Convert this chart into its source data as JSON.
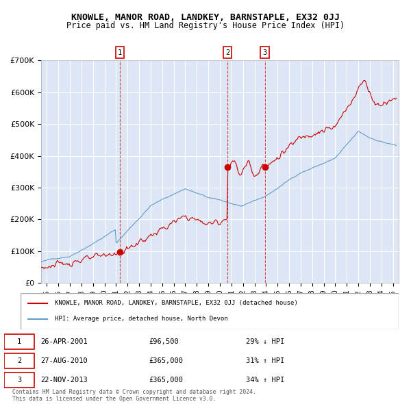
{
  "title": "KNOWLE, MANOR ROAD, LANDKEY, BARNSTAPLE, EX32 0JJ",
  "subtitle": "Price paid vs. HM Land Registry's House Price Index (HPI)",
  "sales": [
    {
      "date_year": 2001.32,
      "price": 96500,
      "label": "1"
    },
    {
      "date_year": 2010.65,
      "price": 365000,
      "label": "2"
    },
    {
      "date_year": 2013.9,
      "price": 365000,
      "label": "3"
    }
  ],
  "vline_years": [
    2001.32,
    2010.65,
    2013.9
  ],
  "ylim": [
    0,
    700000
  ],
  "xlim_start": 1994.5,
  "xlim_end": 2025.5,
  "yticks": [
    0,
    100000,
    200000,
    300000,
    400000,
    500000,
    600000,
    700000
  ],
  "ytick_labels": [
    "£0",
    "£100K",
    "£200K",
    "£300K",
    "£400K",
    "£500K",
    "£600K",
    "£700K"
  ],
  "xticks": [
    1995,
    1996,
    1997,
    1998,
    1999,
    2000,
    2001,
    2002,
    2003,
    2004,
    2005,
    2006,
    2007,
    2008,
    2009,
    2010,
    2011,
    2012,
    2013,
    2014,
    2015,
    2016,
    2017,
    2018,
    2019,
    2020,
    2021,
    2022,
    2023,
    2024,
    2025
  ],
  "property_color": "#cc0000",
  "hpi_color": "#6699cc",
  "bg_color": "#dce6f5",
  "grid_color": "#ffffff",
  "legend_entries": [
    "KNOWLE, MANOR ROAD, LANDKEY, BARNSTAPLE, EX32 0JJ (detached house)",
    "HPI: Average price, detached house, North Devon"
  ],
  "table_data": [
    [
      "1",
      "26-APR-2001",
      "£96,500",
      "29% ↓ HPI"
    ],
    [
      "2",
      "27-AUG-2010",
      "£365,000",
      "31% ↑ HPI"
    ],
    [
      "3",
      "22-NOV-2013",
      "£365,000",
      "34% ↑ HPI"
    ]
  ],
  "footer": "Contains HM Land Registry data © Crown copyright and database right 2024.\nThis data is licensed under the Open Government Licence v3.0."
}
